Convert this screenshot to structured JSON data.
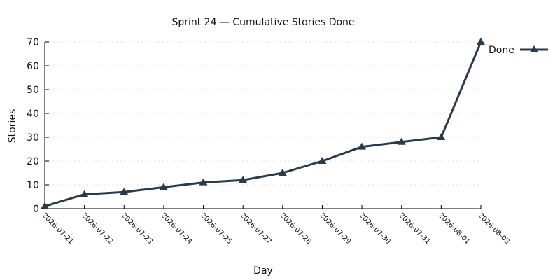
{
  "chart_data": {
    "type": "line",
    "title": "Sprint 24 — Cumulative Stories Done",
    "xlabel": "Day",
    "ylabel": "Stories",
    "x": [
      "2026-07-21",
      "2026-07-22",
      "2026-07-23",
      "2026-07-24",
      "2026-07-25",
      "2026-07-27",
      "2026-07-28",
      "2026-07-29",
      "2026-07-30",
      "2026-07-31",
      "2026-08-01",
      "2026-08-03"
    ],
    "series": [
      {
        "name": "Done",
        "values": [
          1,
          6,
          7,
          9,
          11,
          12,
          15,
          20,
          26,
          28,
          30,
          70
        ]
      }
    ],
    "ylim": [
      0,
      70
    ],
    "yticks": [
      0,
      10,
      20,
      30,
      40,
      50,
      60,
      70
    ],
    "grid": true,
    "legend_position": "top-right",
    "line_color": "#2b3a4a",
    "marker": "triangle",
    "x_axis": "categorical"
  }
}
